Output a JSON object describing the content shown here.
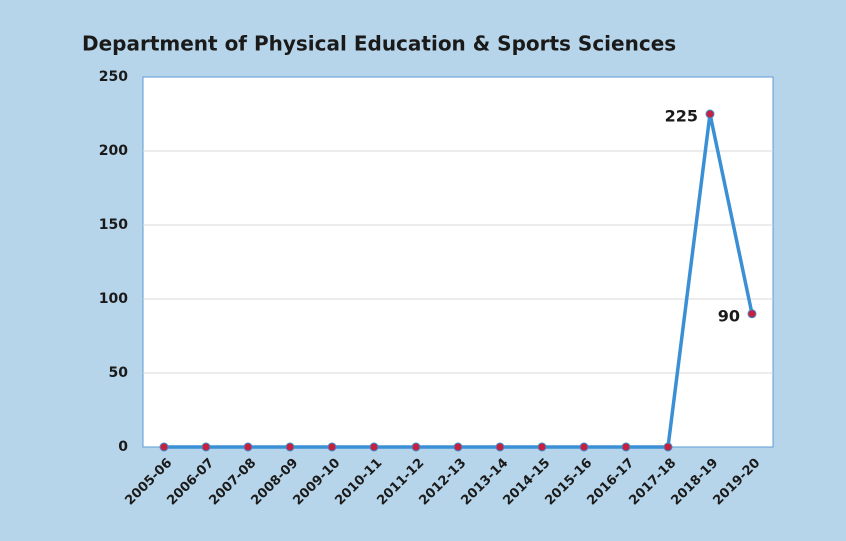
{
  "chart_data": {
    "type": "line",
    "title": "Department of Physical Education & Sports Sciences",
    "categories": [
      "2005-06",
      "2006-07",
      "2007-08",
      "2008-09",
      "2009-10",
      "2010-11",
      "2011-12",
      "2012-13",
      "2013-14",
      "2014-15",
      "2015-16",
      "2016-17",
      "2017-18",
      "2018-19",
      "2019-20"
    ],
    "values": [
      0,
      0,
      0,
      0,
      0,
      0,
      0,
      0,
      0,
      0,
      0,
      0,
      0,
      225,
      90
    ],
    "value_labels": [
      null,
      null,
      null,
      null,
      null,
      null,
      null,
      null,
      null,
      null,
      null,
      null,
      null,
      "225",
      "90"
    ],
    "color": "#3b8fd4",
    "marker_color": "#c8203c",
    "ylim": [
      0,
      250
    ],
    "yticks": [
      0,
      50,
      100,
      150,
      200,
      250
    ],
    "grid": true
  }
}
